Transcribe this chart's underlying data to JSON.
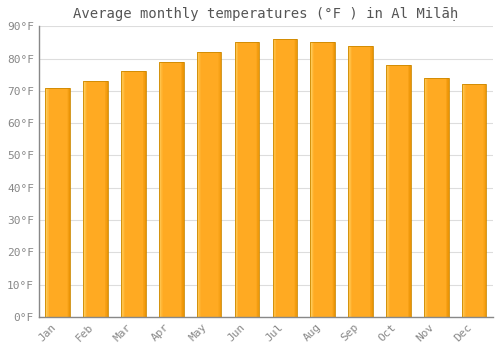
{
  "title": "Average monthly temperatures (°F ) in Al Milāḥ",
  "months": [
    "Jan",
    "Feb",
    "Mar",
    "Apr",
    "May",
    "Jun",
    "Jul",
    "Aug",
    "Sep",
    "Oct",
    "Nov",
    "Dec"
  ],
  "values": [
    71,
    73,
    76,
    79,
    82,
    85,
    86,
    85,
    84,
    78,
    74,
    72
  ],
  "bar_color": "#FFAA22",
  "bar_left_highlight": "#FFD060",
  "bar_right_shadow": "#E89000",
  "bar_edge_color": "#CC8800",
  "ylim": [
    0,
    90
  ],
  "yticks": [
    0,
    10,
    20,
    30,
    40,
    50,
    60,
    70,
    80,
    90
  ],
  "ytick_labels": [
    "0°F",
    "10°F",
    "20°F",
    "30°F",
    "40°F",
    "50°F",
    "60°F",
    "70°F",
    "80°F",
    "90°F"
  ],
  "background_color": "#ffffff",
  "grid_color": "#dddddd",
  "title_fontsize": 10,
  "tick_fontsize": 8,
  "bar_width": 0.65
}
